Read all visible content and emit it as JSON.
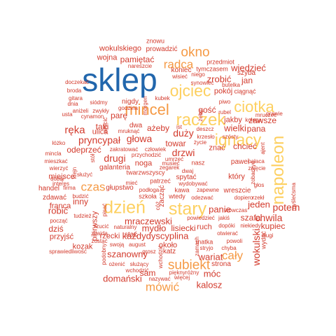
{
  "palette": {
    "blue": "#2166ac",
    "yellow": "#fdd060",
    "orange": "#f59a45",
    "red": "#d33a2c"
  },
  "words": [
    {
      "text": "sklep",
      "c": "blue",
      "v": false
    },
    {
      "text": "raczek",
      "c": "yellow",
      "v": false
    },
    {
      "text": "ignacy",
      "c": "yellow",
      "v": false
    },
    {
      "text": "napoleon",
      "c": "yellow",
      "v": true
    },
    {
      "text": "stary",
      "c": "yellow",
      "v": false
    },
    {
      "text": "dzień",
      "c": "yellow",
      "v": false
    },
    {
      "text": "ojciec",
      "c": "yellow",
      "v": false
    },
    {
      "text": "ciotka",
      "c": "yellow",
      "v": false
    },
    {
      "text": "mincel",
      "c": "orange",
      "v": false
    },
    {
      "text": "okno",
      "c": "orange",
      "v": false
    },
    {
      "text": "subiekt",
      "c": "orange",
      "v": false
    },
    {
      "text": "radca",
      "c": "orange",
      "v": false
    },
    {
      "text": "czas",
      "c": "orange",
      "v": false
    },
    {
      "text": "mówić",
      "c": "orange",
      "v": false
    },
    {
      "text": "cały",
      "c": "orange",
      "v": false
    },
    {
      "text": "wiedzieć",
      "c": "red",
      "v": false
    },
    {
      "text": "ręka",
      "c": "red",
      "v": false
    },
    {
      "text": "głowa",
      "c": "red",
      "v": false
    },
    {
      "text": "pryncypał",
      "c": "red",
      "v": false
    },
    {
      "text": "drugi",
      "c": "red",
      "v": false
    },
    {
      "text": "potem",
      "c": "red",
      "v": false
    },
    {
      "text": "chwila",
      "c": "red",
      "v": false
    },
    {
      "text": "wokulski",
      "c": "red",
      "v": true
    },
    {
      "text": "mraczewski",
      "c": "red",
      "v": false
    },
    {
      "text": "kaźdydyscyplina",
      "c": "red",
      "v": false
    },
    {
      "text": "kalosz",
      "c": "red",
      "v": false
    },
    {
      "text": "domański",
      "c": "red",
      "v": false
    },
    {
      "text": "duży",
      "c": "red",
      "v": false
    },
    {
      "text": "drzwi",
      "c": "red",
      "v": false
    },
    {
      "text": "panie",
      "c": "red",
      "v": false
    },
    {
      "text": "wielki",
      "c": "red",
      "v": false
    },
    {
      "text": "jeden",
      "c": "red",
      "v": false
    },
    {
      "text": "szanowny",
      "c": "red",
      "v": false
    },
    {
      "text": "mydło",
      "c": "red",
      "v": false
    },
    {
      "text": "lisiecki",
      "c": "red",
      "v": false
    },
    {
      "text": "móc",
      "c": "red",
      "v": false
    },
    {
      "text": "wokulskiego",
      "c": "red",
      "v": false
    },
    {
      "text": "pamiętać",
      "c": "red",
      "v": false
    },
    {
      "text": "wojna",
      "c": "red",
      "v": false
    },
    {
      "text": "prowadzić",
      "c": "red",
      "v": false
    },
    {
      "text": "znowu",
      "c": "red",
      "v": false
    },
    {
      "text": "przedmiot",
      "c": "red",
      "v": false
    },
    {
      "text": "tymczasem",
      "c": "red",
      "v": false
    },
    {
      "text": "koniec",
      "c": "red",
      "v": false
    },
    {
      "text": "jan",
      "c": "red",
      "v": false
    },
    {
      "text": "zrobić",
      "c": "red",
      "v": false
    },
    {
      "text": "szyba",
      "c": "red",
      "v": false
    },
    {
      "text": "pokój",
      "c": "red",
      "v": false
    },
    {
      "text": "ciągnąć",
      "c": "red",
      "v": false
    },
    {
      "text": "gość",
      "c": "red",
      "v": false
    },
    {
      "text": "jakby",
      "c": "red",
      "v": false
    },
    {
      "text": "zawsze",
      "c": "red",
      "v": false
    },
    {
      "text": "pana",
      "c": "red",
      "v": false
    },
    {
      "text": "chcieć",
      "c": "red",
      "v": false
    },
    {
      "text": "znać",
      "c": "red",
      "v": false
    },
    {
      "text": "paweł",
      "c": "red",
      "v": false
    },
    {
      "text": "towar",
      "c": "red",
      "v": false
    },
    {
      "text": "taki",
      "c": "red",
      "v": false
    },
    {
      "text": "ulica",
      "c": "red",
      "v": false
    },
    {
      "text": "odeprzeć",
      "c": "red",
      "v": false
    },
    {
      "text": "miejsce",
      "c": "red",
      "v": false
    },
    {
      "text": "noga",
      "c": "red",
      "v": false
    },
    {
      "text": "galanteria",
      "c": "red",
      "v": false
    },
    {
      "text": "robić",
      "c": "red",
      "v": false
    },
    {
      "text": "dziś",
      "c": "red",
      "v": false
    },
    {
      "text": "kozak",
      "c": "red",
      "v": false
    },
    {
      "text": "przyjść",
      "c": "red",
      "v": false
    },
    {
      "text": "franca",
      "c": "red",
      "v": false
    },
    {
      "text": "handel",
      "c": "red",
      "v": false
    },
    {
      "text": "inny",
      "c": "red",
      "v": false
    },
    {
      "text": "szafa",
      "c": "red",
      "v": false
    },
    {
      "text": "kupiec",
      "c": "red",
      "v": false
    },
    {
      "text": "który",
      "c": "red",
      "v": false
    },
    {
      "text": "wariat",
      "c": "red",
      "v": false
    },
    {
      "text": "ruch",
      "c": "red",
      "v": false
    },
    {
      "text": "strona",
      "c": "red",
      "v": false
    },
    {
      "text": "stać",
      "c": "red",
      "v": false
    },
    {
      "text": "rzecki",
      "c": "red",
      "v": false
    },
    {
      "text": "sam",
      "c": "red",
      "v": false
    },
    {
      "text": "około",
      "c": "red",
      "v": false
    },
    {
      "text": "nigdy",
      "c": "red",
      "v": false
    },
    {
      "text": "parę",
      "c": "red",
      "v": false
    },
    {
      "text": "dwa",
      "c": "red",
      "v": false
    },
    {
      "text": "ażeby",
      "c": "red",
      "v": false
    },
    {
      "text": "zdawać",
      "c": "red",
      "v": false
    },
    {
      "text": "wreszcie",
      "c": "red",
      "v": false
    },
    {
      "text": "spytać",
      "c": "red",
      "v": false
    },
    {
      "text": "pierwszy",
      "c": "red",
      "v": true
    },
    {
      "text": "zacząć",
      "c": "red",
      "v": true
    },
    {
      "text": "nareszcie",
      "c": "red",
      "v": false
    },
    {
      "text": "butelka",
      "c": "red",
      "v": false
    },
    {
      "text": "niego",
      "c": "red",
      "v": false
    },
    {
      "text": "wisieć",
      "c": "red",
      "v": false
    },
    {
      "text": "synowiec",
      "c": "red",
      "v": false
    },
    {
      "text": "doczekać",
      "c": "red",
      "v": false
    },
    {
      "text": "broda",
      "c": "red",
      "v": false
    },
    {
      "text": "gitara",
      "c": "red",
      "v": false
    },
    {
      "text": "dnia",
      "c": "red",
      "v": false
    },
    {
      "text": "siódmy",
      "c": "red",
      "v": false
    },
    {
      "text": "zwykły",
      "c": "red",
      "v": false
    },
    {
      "text": "aniżeli",
      "c": "red",
      "v": false
    },
    {
      "text": "usta",
      "c": "red",
      "v": false
    },
    {
      "text": "cynamon",
      "c": "red",
      "v": false
    },
    {
      "text": "godzina",
      "c": "red",
      "v": false
    },
    {
      "text": "mruknąć",
      "c": "red",
      "v": false
    },
    {
      "text": "kubek",
      "c": "red",
      "v": false
    },
    {
      "text": "piwo",
      "c": "red",
      "v": false
    },
    {
      "text": "rubel",
      "c": "red",
      "v": false
    },
    {
      "text": "kolega",
      "c": "red",
      "v": false
    },
    {
      "text": "mruczeć",
      "c": "red",
      "v": false
    },
    {
      "text": "prawie",
      "c": "red",
      "v": false
    },
    {
      "text": "szósty",
      "c": "red",
      "v": false
    },
    {
      "text": "deszcz",
      "c": "red",
      "v": false
    },
    {
      "text": "krzesło",
      "c": "red",
      "v": false
    },
    {
      "text": "życie",
      "c": "red",
      "v": false
    },
    {
      "text": "ist",
      "c": "red",
      "v": false
    },
    {
      "text": "łóżko",
      "c": "red",
      "v": false
    },
    {
      "text": "mincla",
      "c": "red",
      "v": false
    },
    {
      "text": "mieszkać",
      "c": "red",
      "v": false
    },
    {
      "text": "wierzyć",
      "c": "red",
      "v": false
    },
    {
      "text": "zakratować",
      "c": "red",
      "v": false
    },
    {
      "text": "człowiek",
      "c": "red",
      "v": false
    },
    {
      "text": "przychodzić",
      "c": "red",
      "v": false
    },
    {
      "text": "umrzeć",
      "c": "red",
      "v": false
    },
    {
      "text": "musieć",
      "c": "red",
      "v": false
    },
    {
      "text": "zegarek",
      "c": "red",
      "v": false
    },
    {
      "text": "dwaj",
      "c": "red",
      "v": false
    },
    {
      "text": "twarzwszyscy",
      "c": "red",
      "v": false
    },
    {
      "text": "mieć",
      "c": "red",
      "v": false
    },
    {
      "text": "służyć",
      "c": "red",
      "v": false
    },
    {
      "text": "głupstwo",
      "c": "red",
      "v": false
    },
    {
      "text": "podłoga",
      "c": "red",
      "v": false
    },
    {
      "text": "kawa",
      "c": "red",
      "v": false
    },
    {
      "text": "zapewne",
      "c": "red",
      "v": false
    },
    {
      "text": "dopiero",
      "c": "red",
      "v": false
    },
    {
      "text": "odezwać",
      "c": "red",
      "v": false
    },
    {
      "text": "wtedy",
      "c": "red",
      "v": false
    },
    {
      "text": "szkoła",
      "c": "red",
      "v": false
    },
    {
      "text": "patrzeć",
      "c": "red",
      "v": false
    },
    {
      "text": "wydobywać",
      "c": "red",
      "v": false
    },
    {
      "text": "dobry",
      "c": "red",
      "v": false
    },
    {
      "text": "interes",
      "c": "red",
      "v": false
    },
    {
      "text": "budzić",
      "c": "red",
      "v": false
    },
    {
      "text": "firma",
      "c": "red",
      "v": false
    },
    {
      "text": "tudzież",
      "c": "red",
      "v": false
    },
    {
      "text": "począć",
      "c": "red",
      "v": false
    },
    {
      "text": "rzucić",
      "c": "red",
      "v": false
    },
    {
      "text": "naturalny",
      "c": "red",
      "v": false
    },
    {
      "text": "znajda",
      "c": "red",
      "v": false
    },
    {
      "text": "zostać",
      "c": "red",
      "v": false
    },
    {
      "text": "swoją",
      "c": "red",
      "v": false
    },
    {
      "text": "august",
      "c": "red",
      "v": false
    },
    {
      "text": "sprawiedliwość",
      "c": "red",
      "v": false
    },
    {
      "text": "ożenić",
      "c": "red",
      "v": false
    },
    {
      "text": "służący",
      "c": "red",
      "v": false
    },
    {
      "text": "wchodzić",
      "c": "red",
      "v": false
    },
    {
      "text": "nazywać",
      "c": "red",
      "v": false
    },
    {
      "text": "więcej",
      "c": "red",
      "v": false
    },
    {
      "text": "pięknyróżny",
      "c": "red",
      "v": false
    },
    {
      "text": "grosz",
      "c": "red",
      "v": false
    },
    {
      "text": "katz",
      "c": "red",
      "v": false
    },
    {
      "text": "powiedzieć",
      "c": "red",
      "v": false
    },
    {
      "text": "jakiś",
      "c": "red",
      "v": false
    },
    {
      "text": "dopóki",
      "c": "red",
      "v": false
    },
    {
      "text": "otwierać",
      "c": "red",
      "v": false
    },
    {
      "text": "matka",
      "c": "red",
      "v": false
    },
    {
      "text": "powoli",
      "c": "red",
      "v": false
    },
    {
      "text": "stryjo",
      "c": "red",
      "v": false
    },
    {
      "text": "chyba",
      "c": "red",
      "v": false
    },
    {
      "text": "długi",
      "c": "red",
      "v": false
    },
    {
      "text": "wówczas",
      "c": "red",
      "v": false
    },
    {
      "text": "niekiedy",
      "c": "red",
      "v": false
    },
    {
      "text": "rzekł",
      "c": "red",
      "v": false
    },
    {
      "text": "głos",
      "c": "red",
      "v": false
    },
    {
      "text": "zajęcie",
      "c": "red",
      "v": false
    },
    {
      "text": "pałaca",
      "c": "red",
      "v": false
    },
    {
      "text": "nasz",
      "c": "red",
      "v": false
    },
    {
      "text": "ajent",
      "c": "red",
      "v": true
    },
    {
      "text": "zobaczyć",
      "c": "red",
      "v": true
    },
    {
      "text": "myślećsma",
      "c": "red",
      "v": true
    },
    {
      "text": "wydać",
      "c": "red",
      "v": true
    },
    {
      "text": "klejn",
      "c": "red",
      "v": true
    },
    {
      "text": "stół",
      "c": "red",
      "v": true
    },
    {
      "text": "pisać",
      "c": "red",
      "v": true
    },
    {
      "text": "podobny",
      "c": "red",
      "v": true
    },
    {
      "text": "zamach",
      "c": "red",
      "v": true
    },
    {
      "text": "wchodzić",
      "c": "red",
      "v": true
    },
    {
      "text": "morgen",
      "c": "red",
      "v": true
    },
    {
      "text": "wrócić",
      "c": "red",
      "v": true
    },
    {
      "text": "cóż",
      "c": "red",
      "v": true
    },
    {
      "text": "żeby",
      "c": "red",
      "v": true
    }
  ]
}
